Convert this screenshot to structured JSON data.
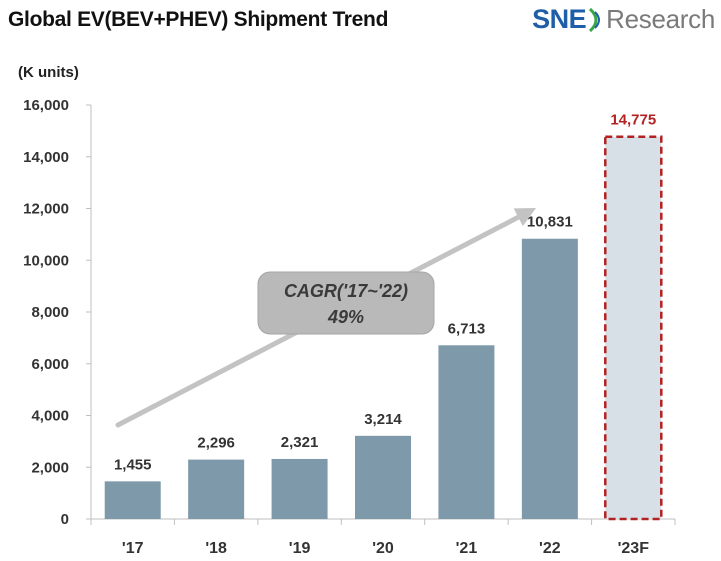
{
  "header": {
    "title": "Global EV(BEV+PHEV)  Shipment Trend",
    "logo_sne": "SNE",
    "logo_research": "Research"
  },
  "unit_label": "(K units)",
  "colors": {
    "bar": "#7e99a9",
    "forecast_bar": "#d6e0e6",
    "forecast_border": "#b22222",
    "forecast_label": "#b22222",
    "arrow": "#c3c3c3",
    "callout_bg": "#b9b9b9",
    "brand_blue": "#1f5fa8",
    "brand_green": "#3aa64a"
  },
  "annotation": {
    "line1": "CAGR('17~'22)",
    "line2": "49%"
  },
  "chart_data": {
    "type": "bar",
    "title": "Global EV(BEV+PHEV)  Shipment Trend",
    "ylabel": "(K units)",
    "xlabel": "",
    "categories": [
      "'17",
      "'18",
      "'19",
      "'20",
      "'21",
      "'22",
      "'23F"
    ],
    "values": [
      1455,
      2296,
      2321,
      3214,
      6713,
      10831,
      14775
    ],
    "value_labels": [
      "1,455",
      "2,296",
      "2,321",
      "3,214",
      "6,713",
      "10,831",
      "14,775"
    ],
    "forecast_index": 6,
    "ylim": [
      0,
      16000
    ],
    "yticks": [
      0,
      2000,
      4000,
      6000,
      8000,
      10000,
      12000,
      14000,
      16000
    ],
    "ytick_labels": [
      "0",
      "2,000",
      "4,000",
      "6,000",
      "8,000",
      "10,000",
      "12,000",
      "14,000",
      "16,000"
    ],
    "grid": false,
    "legend": "none"
  }
}
